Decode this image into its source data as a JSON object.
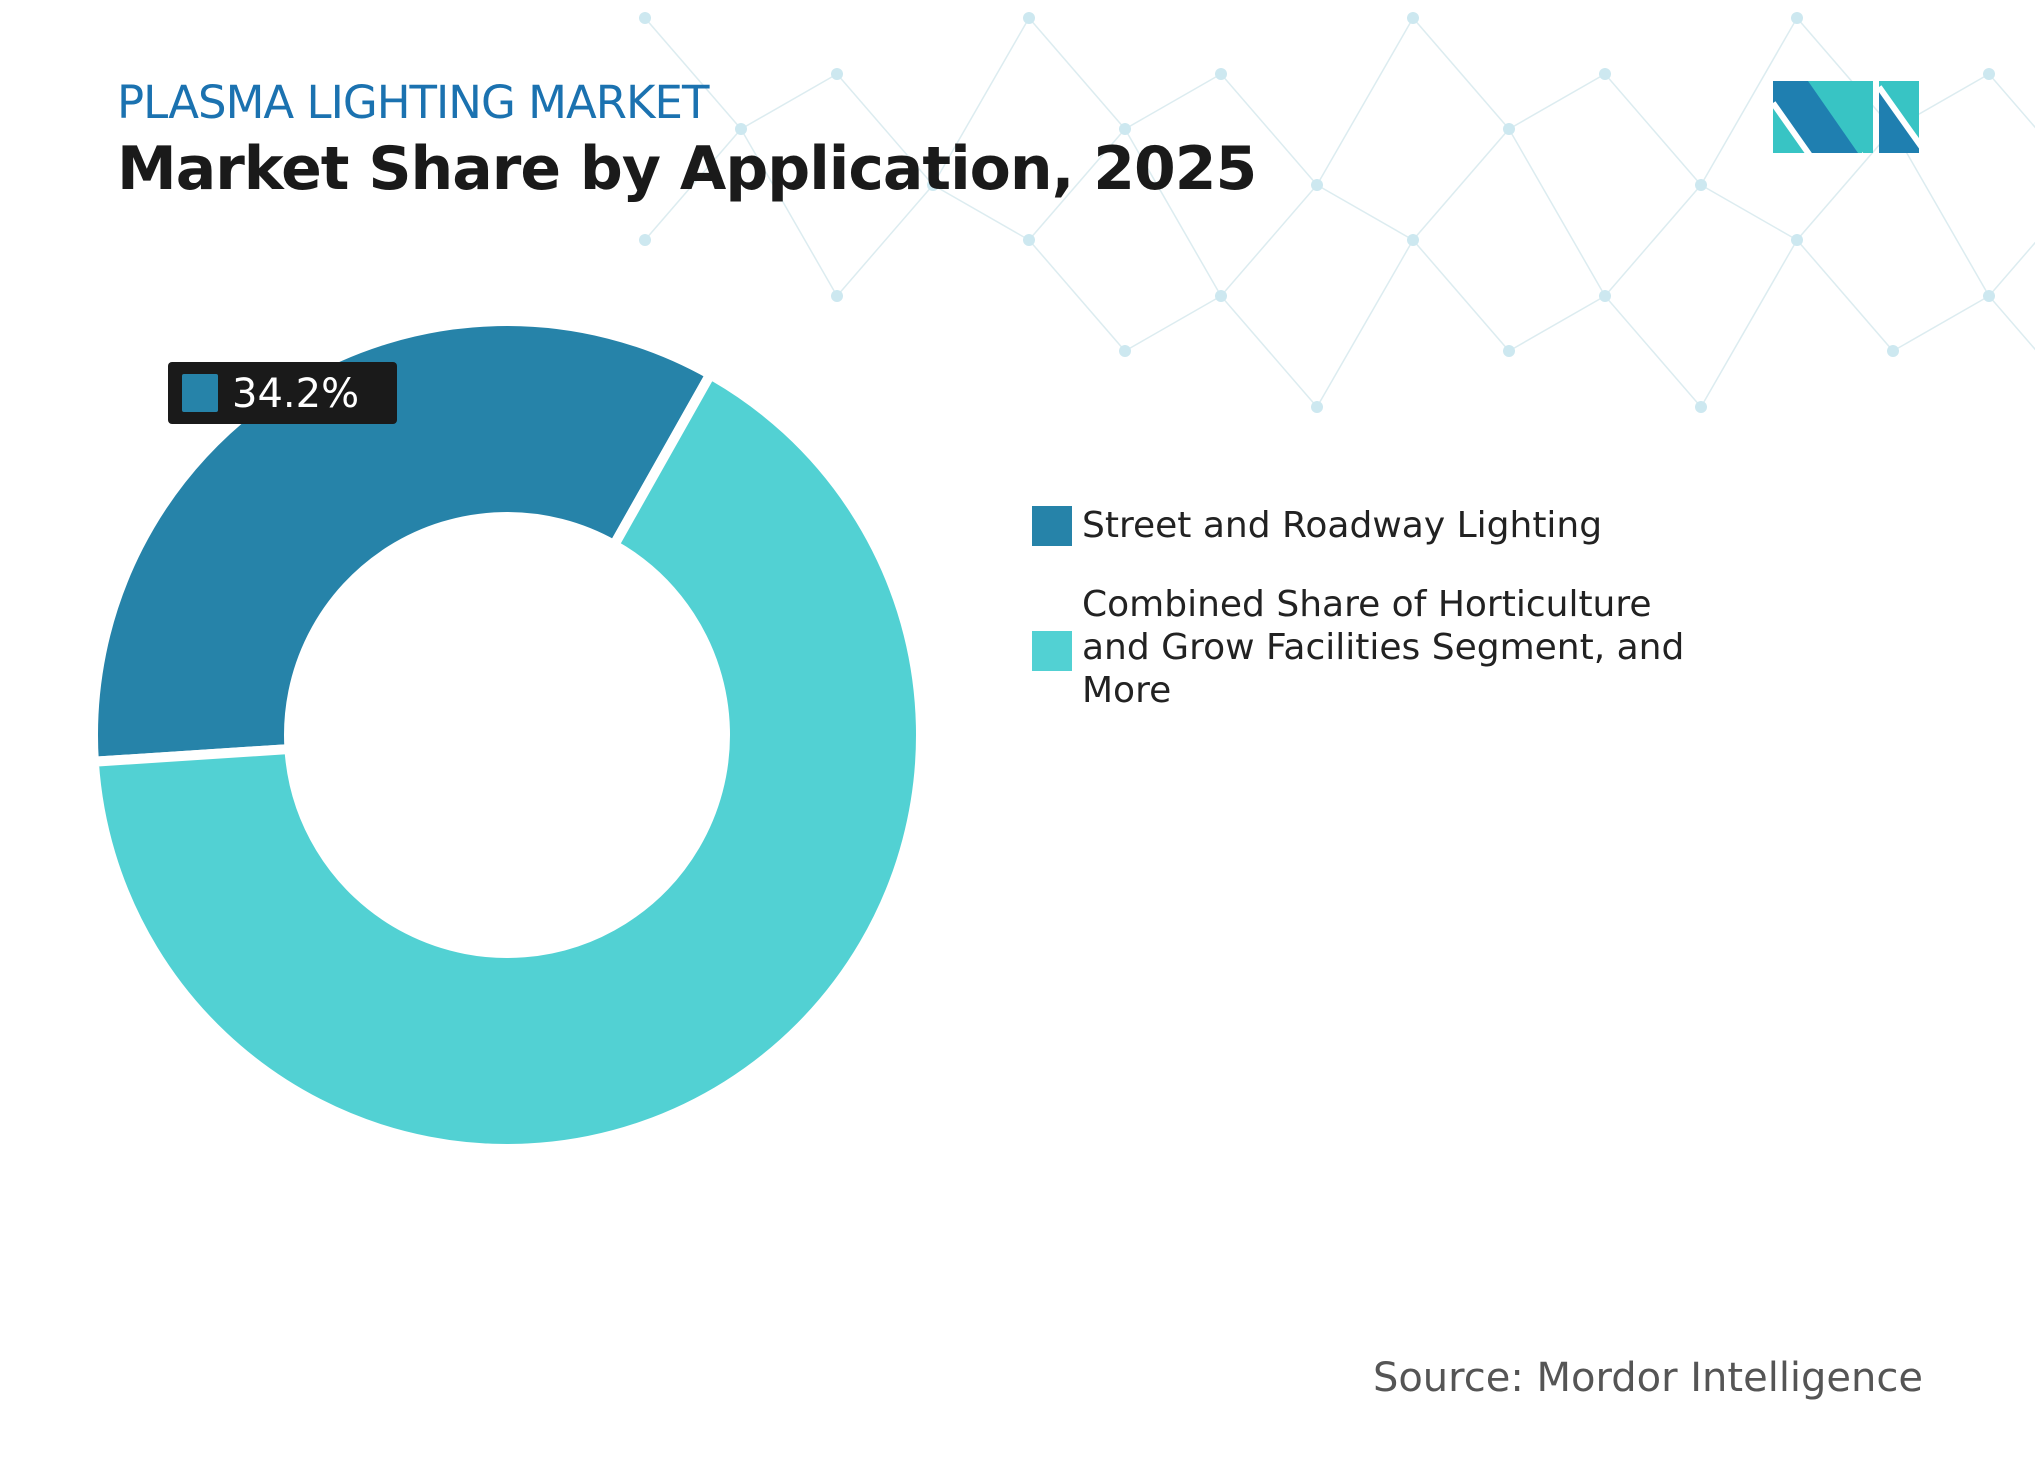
{
  "header": {
    "kicker": "PLASMA LIGHTING MARKET",
    "title": "Market Share by Application, 2025"
  },
  "chart_data": {
    "type": "donut",
    "title": "Market Share by Application, 2025",
    "categories": [
      "Street and Roadway Lighting",
      "Combined Share of Horticulture and Grow Facilities Segment, and More"
    ],
    "values": [
      34.2,
      65.8
    ],
    "unit": "%",
    "data_labels": [
      "34.2%"
    ],
    "colors": [
      "#2683a9",
      "#52d1d3"
    ],
    "legend_position": "right"
  },
  "legend": {
    "items": [
      {
        "label": "Street and Roadway Lighting",
        "color": "#2683a9"
      },
      {
        "label": "Combined Share of Horticulture and Grow Facilities Segment, and More",
        "color": "#52d1d3"
      }
    ]
  },
  "footer": {
    "source": "Source: Mordor Intelligence"
  },
  "logo": {
    "name": "mordor-intelligence-logo",
    "colors": [
      "#1f7fb0",
      "#38c4c4"
    ]
  }
}
